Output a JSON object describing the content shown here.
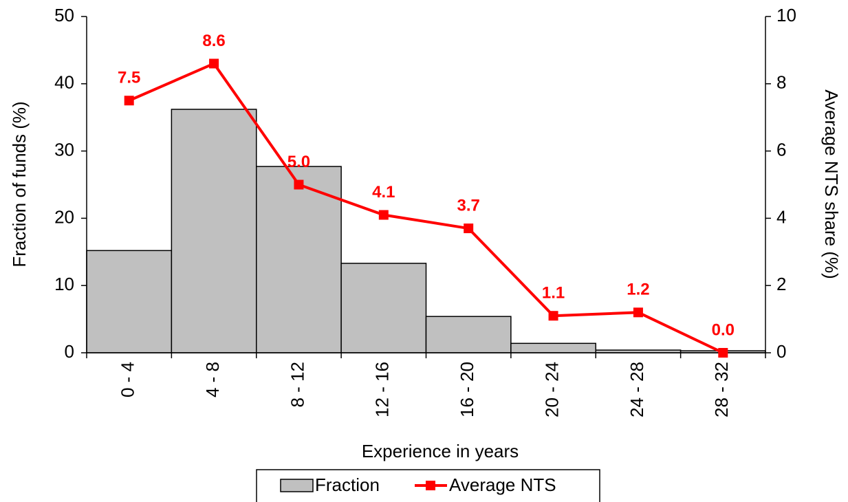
{
  "chart_data": {
    "type": "bar",
    "x_label": "Experience in years",
    "y_label": "Fraction of funds (%)",
    "y2_label": "Average NTS share (%)",
    "categories": [
      "0 - 4",
      "4 - 8",
      "8 - 12",
      "12 - 16",
      "16 - 20",
      "20 - 24",
      "24 - 28",
      "28 - 32"
    ],
    "series": [
      {
        "name": "Fraction",
        "type": "bar",
        "color": "#c0c0c0",
        "values": [
          15.2,
          36.2,
          27.7,
          13.3,
          5.4,
          1.4,
          0.4,
          0.3
        ]
      },
      {
        "name": "Average NTS",
        "type": "line",
        "axis": "y2",
        "color": "#ff0000",
        "values": [
          7.5,
          8.6,
          5.0,
          4.1,
          3.7,
          1.1,
          1.2,
          0.0
        ],
        "value_labels": [
          "7.5",
          "8.6",
          "5.0",
          "4.1",
          "3.7",
          "1.1",
          "1.2",
          "0.0"
        ]
      }
    ],
    "ylim": [
      0,
      50
    ],
    "yticks": [
      0,
      10,
      20,
      30,
      40,
      50
    ],
    "y2lim": [
      0,
      10
    ],
    "y2ticks": [
      0,
      2,
      4,
      6,
      8,
      10
    ],
    "grid": false,
    "legend": "bottom"
  }
}
